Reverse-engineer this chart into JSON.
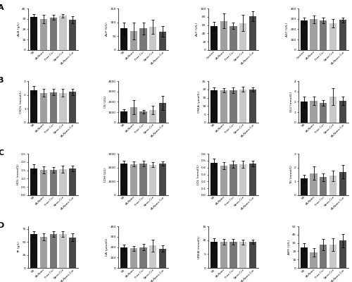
{
  "rows": [
    "A",
    "B",
    "C",
    "D"
  ],
  "bar_colors": [
    "#111111",
    "#a0a0a0",
    "#787878",
    "#c8c8c8",
    "#484848"
  ],
  "subplots": {
    "A": [
      {
        "ylabel": "ALB (g/L)",
        "ylim": [
          0,
          40
        ],
        "yticks": [
          0,
          10,
          20,
          30,
          40
        ],
        "values": [
          32,
          30,
          31.5,
          33,
          29
        ],
        "errors": [
          2.5,
          4,
          2.5,
          1.5,
          3.5
        ],
        "groups": [
          "NS",
          "FA-Nano",
          "Free Cur",
          "Nano-Cur",
          "FA-Nano-Cur"
        ]
      },
      {
        "ylabel": "ALP (U/L)",
        "ylim": [
          0,
          150
        ],
        "yticks": [
          0,
          50,
          100,
          150
        ],
        "values": [
          78,
          68,
          78,
          83,
          67
        ],
        "errors": [
          22,
          30,
          22,
          25,
          20
        ],
        "groups": [
          "NS",
          "FA-Nano",
          "Free Cur",
          "Nano-Cur",
          "FA-Nano-Cur"
        ]
      },
      {
        "ylabel": "ALT (U/L)",
        "ylim": [
          0,
          100
        ],
        "yticks": [
          0,
          20,
          40,
          60,
          80,
          100
        ],
        "values": [
          58,
          70,
          58,
          65,
          82
        ],
        "errors": [
          10,
          18,
          8,
          20,
          12
        ],
        "groups": [
          "Control",
          "FA-Nano",
          "Free Cur",
          "Nano-Cur",
          "FA-Nano-Cur"
        ]
      },
      {
        "ylabel": "AST (U/L)",
        "ylim": [
          0,
          400
        ],
        "yticks": [
          0,
          100,
          200,
          300,
          400
        ],
        "values": [
          285,
          295,
          285,
          255,
          290
        ],
        "errors": [
          30,
          35,
          30,
          40,
          25
        ],
        "groups": [
          "Control",
          "FA-Nano",
          "Free Cur",
          "Nano-Cur",
          "FA-Nano-Cur"
        ]
      }
    ],
    "B": [
      {
        "ylabel": "CHOL (mmol/L)",
        "ylim": [
          0,
          3
        ],
        "yticks": [
          0,
          1,
          2,
          3
        ],
        "values": [
          2.35,
          2.15,
          2.2,
          2.15,
          2.22
        ],
        "errors": [
          0.28,
          0.28,
          0.22,
          0.28,
          0.22
        ],
        "groups": [
          "NS",
          "FA-Nano",
          "Free Cur",
          "Nano-Cur",
          "FA-Nano-Cur"
        ]
      },
      {
        "ylabel": "CK (U/L)",
        "ylim": [
          0,
          4000
        ],
        "yticks": [
          0,
          1000,
          2000,
          3000,
          4000
        ],
        "values": [
          1100,
          1500,
          1050,
          1200,
          1900
        ],
        "errors": [
          200,
          700,
          200,
          400,
          700
        ],
        "groups": [
          "NS",
          "FA-Nano",
          "Free Cur",
          "Nano-Cur",
          "FA-Nano-Cur"
        ]
      },
      {
        "ylabel": "CREA (μmol/L)",
        "ylim": [
          0,
          25
        ],
        "yticks": [
          0,
          5,
          10,
          15,
          20,
          25
        ],
        "values": [
          19.5,
          19.5,
          19.5,
          20,
          20
        ],
        "errors": [
          1.5,
          1.2,
          1.5,
          1.5,
          1.2
        ],
        "groups": [
          "NS",
          "FA-Nano",
          "Free Cur",
          "Nano-Cur",
          "FA-Nano-Cur"
        ]
      },
      {
        "ylabel": "GLU (mmol/L)",
        "ylim": [
          0,
          4
        ],
        "yticks": [
          0,
          1,
          2,
          3,
          4
        ],
        "values": [
          2.0,
          2.1,
          1.9,
          2.5,
          2.1
        ],
        "errors": [
          0.5,
          0.4,
          0.3,
          0.8,
          0.4
        ],
        "groups": [
          "NS",
          "FA-Nano",
          "Free Cur",
          "Nano-Cur",
          "FA-Nano-Cur"
        ]
      }
    ],
    "C": [
      {
        "ylabel": "HDL (mmol/L)",
        "ylim": [
          0,
          2.5
        ],
        "yticks": [
          0.0,
          0.5,
          1.0,
          1.5,
          2.0,
          2.5
        ],
        "values": [
          1.6,
          1.52,
          1.52,
          1.57,
          1.62
        ],
        "errors": [
          0.25,
          0.2,
          0.18,
          0.2,
          0.18
        ],
        "groups": [
          "NS",
          "FA-Nano",
          "Free Cur",
          "Nano-Cur",
          "FA-Nano-Cur"
        ]
      },
      {
        "ylabel": "LDH (U/L)",
        "ylim": [
          0,
          3000
        ],
        "yticks": [
          0,
          1000,
          2000,
          3000
        ],
        "values": [
          2300,
          2250,
          2280,
          2200,
          2280
        ],
        "errors": [
          200,
          180,
          200,
          180,
          150
        ],
        "groups": [
          "NS",
          "FA-Nano",
          "Free Cur",
          "Nano-Cur",
          "FA-Nano-Cur"
        ]
      },
      {
        "ylabel": "LDL (mmol/L)",
        "ylim": [
          0.0,
          0.6
        ],
        "yticks": [
          0.0,
          0.1,
          0.2,
          0.3,
          0.4,
          0.5,
          0.6
        ],
        "values": [
          0.47,
          0.43,
          0.45,
          0.45,
          0.46
        ],
        "errors": [
          0.06,
          0.05,
          0.05,
          0.05,
          0.04
        ],
        "groups": [
          "NS",
          "FA-Nano",
          "Free Cur",
          "Nano-Cur",
          "FA-Nano-Cur"
        ]
      },
      {
        "ylabel": "TG (mmol/L)",
        "ylim": [
          0,
          3
        ],
        "yticks": [
          0,
          1,
          2,
          3
        ],
        "values": [
          1.2,
          1.6,
          1.3,
          1.4,
          1.7
        ],
        "errors": [
          0.3,
          0.5,
          0.3,
          0.4,
          0.5
        ],
        "groups": [
          "NS",
          "FA-Nano",
          "Free Cur",
          "Nano-Cur",
          "FA-Nano-Cur"
        ]
      }
    ],
    "D": [
      {
        "ylabel": "TP (g/L)",
        "ylim": [
          0,
          80
        ],
        "yticks": [
          0,
          25,
          50,
          75
        ],
        "values": [
          65,
          60,
          65,
          65,
          59
        ],
        "errors": [
          5,
          7,
          5,
          5,
          7
        ],
        "groups": [
          "NS",
          "FA-Nano",
          "Free Cur",
          "Nano-Cur",
          "FA-Nano-Cur"
        ]
      },
      {
        "ylabel": "UA (μmol/L)",
        "ylim": [
          0,
          400
        ],
        "yticks": [
          0,
          100,
          200,
          300,
          400
        ],
        "values": [
          195,
          188,
          198,
          215,
          185
        ],
        "errors": [
          30,
          25,
          30,
          60,
          30
        ],
        "groups": [
          "NS",
          "FA-Nano",
          "Free Cur",
          "Nano-Cur",
          "FA-Nano-Cur"
        ]
      },
      {
        "ylabel": "UREA (mmol/L)",
        "ylim": [
          0,
          15
        ],
        "yticks": [
          0,
          5,
          10,
          15
        ],
        "values": [
          9.5,
          9.5,
          9.5,
          9.3,
          9.5
        ],
        "errors": [
          1.2,
          1.0,
          1.0,
          1.0,
          0.8
        ],
        "groups": [
          "NS",
          "FA-Nano",
          "Free Cur",
          "Nano-Cur",
          "FA-Nano-Cur"
        ]
      },
      {
        "ylabel": "AMY (U/L)",
        "ylim": [
          0,
          50
        ],
        "yticks": [
          0,
          10,
          20,
          30,
          40,
          50
        ],
        "values": [
          25,
          19,
          28,
          28,
          33
        ],
        "errors": [
          5,
          5,
          7,
          8,
          8
        ],
        "groups": [
          "NS",
          "FA-Nano",
          "Free Cur",
          "Nano-Cur",
          "FA-Nano-Cur"
        ]
      }
    ]
  }
}
